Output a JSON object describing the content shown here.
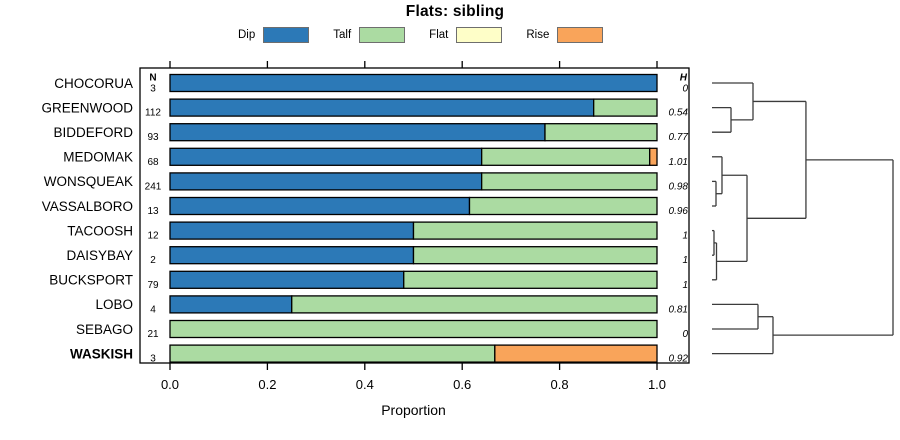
{
  "title": "Flats: sibling",
  "legend": {
    "items": [
      {
        "label": "Dip",
        "color": "#2C79B7"
      },
      {
        "label": "Talf",
        "color": "#ABDBA2"
      },
      {
        "label": "Flat",
        "color": "#FEFEC8"
      },
      {
        "label": "Rise",
        "color": "#F9A45A"
      }
    ],
    "swatch_border_color": "#6E6E6E"
  },
  "x_axis": {
    "label": "Proportion",
    "ticks": [
      "0.0",
      "0.2",
      "0.4",
      "0.6",
      "0.8",
      "1.0"
    ],
    "min": 0,
    "max": 1
  },
  "columns": {
    "n_header": "N",
    "h_header": "H"
  },
  "chart_data": {
    "type": "bar",
    "orientation": "horizontal",
    "stacked": true,
    "title": "Flats: sibling",
    "xlabel": "Proportion",
    "xlim": [
      0,
      1
    ],
    "series_order": [
      "Dip",
      "Talf",
      "Flat",
      "Rise"
    ],
    "rows": [
      {
        "label": "CHOCORUA",
        "n": 3,
        "h": "0",
        "bold": false,
        "values": [
          1,
          0,
          0,
          0
        ]
      },
      {
        "label": "GREENWOOD",
        "n": 112,
        "h": "0.54",
        "bold": false,
        "values": [
          0.87,
          0.13,
          0,
          0
        ]
      },
      {
        "label": "BIDDEFORD",
        "n": 93,
        "h": "0.77",
        "bold": false,
        "values": [
          0.77,
          0.23,
          0,
          0
        ]
      },
      {
        "label": "MEDOMAK",
        "n": 68,
        "h": "1.01",
        "bold": false,
        "values": [
          0.64,
          0.345,
          0,
          0.015
        ]
      },
      {
        "label": "WONSQUEAK",
        "n": 241,
        "h": "0.98",
        "bold": false,
        "values": [
          0.64,
          0.36,
          0,
          0
        ]
      },
      {
        "label": "VASSALBORO",
        "n": 13,
        "h": "0.96",
        "bold": false,
        "values": [
          0.615,
          0.385,
          0,
          0
        ]
      },
      {
        "label": "TACOOSH",
        "n": 12,
        "h": "1",
        "bold": false,
        "values": [
          0.5,
          0.5,
          0,
          0
        ]
      },
      {
        "label": "DAISYBAY",
        "n": 2,
        "h": "1",
        "bold": false,
        "values": [
          0.5,
          0.5,
          0,
          0
        ]
      },
      {
        "label": "BUCKSPORT",
        "n": 79,
        "h": "1",
        "bold": false,
        "values": [
          0.48,
          0.52,
          0,
          0
        ]
      },
      {
        "label": "LOBO",
        "n": 4,
        "h": "0.81",
        "bold": false,
        "values": [
          0.25,
          0.75,
          0,
          0
        ]
      },
      {
        "label": "SEBAGO",
        "n": 21,
        "h": "0",
        "bold": false,
        "values": [
          0,
          1,
          0,
          0
        ]
      },
      {
        "label": "WASKISH",
        "n": 3,
        "h": "0.92",
        "bold": true,
        "values": [
          0,
          0.667,
          0,
          0.333
        ]
      }
    ],
    "dendrogram": {
      "h": 1,
      "children": [
        {
          "h": 0.519,
          "children": [
            {
              "h": 0.2265,
              "children": [
                {
                  "leaf": 0
                },
                {
                  "h": 0.105,
                  "children": [
                    {
                      "leaf": 1
                    },
                    {
                      "leaf": 2
                    }
                  ]
                }
              ]
            },
            {
              "h": 0.1934,
              "children": [
                {
                  "h": 0.0552,
                  "children": [
                    {
                      "leaf": 3
                    },
                    {
                      "h": 0.0221,
                      "children": [
                        {
                          "leaf": 4
                        },
                        {
                          "leaf": 5
                        }
                      ]
                    }
                  ]
                },
                {
                  "h": 0.0249,
                  "children": [
                    {
                      "h": 0.011,
                      "children": [
                        {
                          "leaf": 6
                        },
                        {
                          "leaf": 7
                        }
                      ]
                    },
                    {
                      "leaf": 8
                    }
                  ]
                }
              ]
            }
          ]
        },
        {
          "h": 0.337,
          "children": [
            {
              "h": 0.2541,
              "children": [
                {
                  "leaf": 9
                },
                {
                  "leaf": 10
                }
              ]
            },
            {
              "leaf": 11
            }
          ]
        }
      ]
    }
  }
}
